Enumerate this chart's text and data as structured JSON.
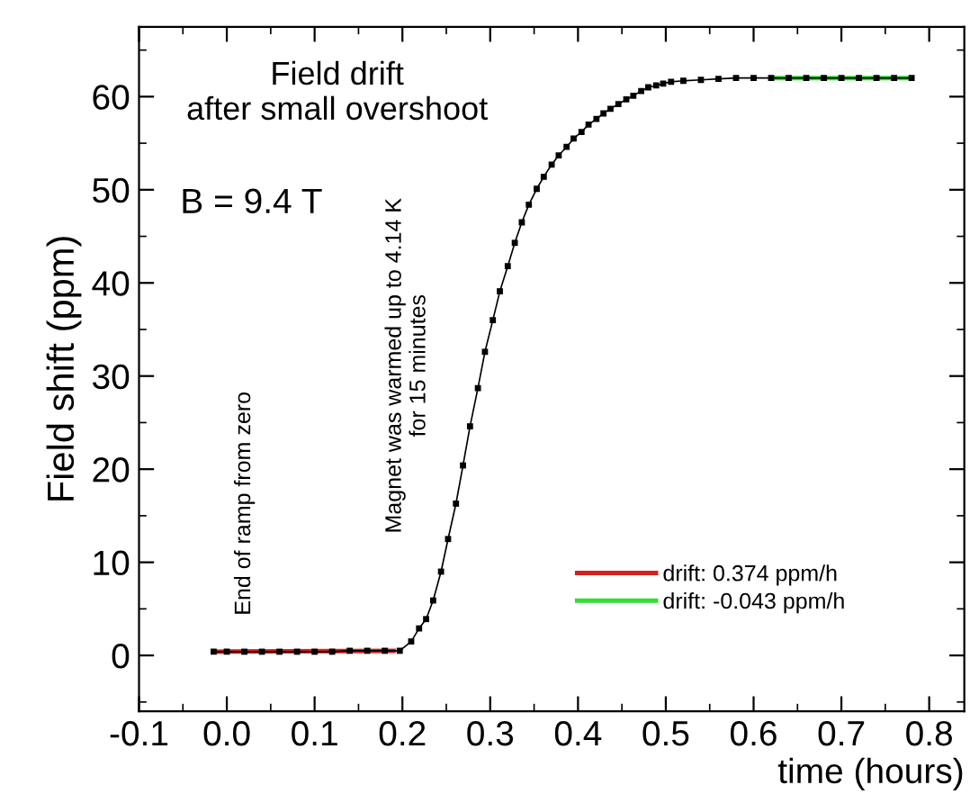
{
  "chart_data": {
    "type": "line",
    "xlabel": "time (hours)",
    "ylabel": "Field shift (ppm)",
    "xlim": [
      -0.1,
      0.84
    ],
    "xticks": [
      {
        "value": -0.1,
        "label": "-0.1"
      },
      {
        "value": 0,
        "label": "0.0"
      },
      {
        "value": 0.1,
        "label": "0.1"
      },
      {
        "value": 0.2,
        "label": "0.2"
      },
      {
        "value": 0.3,
        "label": "0.3"
      },
      {
        "value": 0.4,
        "label": "0.4"
      },
      {
        "value": 0.5,
        "label": "0.5"
      },
      {
        "value": 0.6,
        "label": "0.6"
      },
      {
        "value": 0.7,
        "label": "0.7"
      },
      {
        "value": 0.8,
        "label": "0.8"
      }
    ],
    "ylim": [
      -6,
      67.5
    ],
    "yticks": [
      0,
      10,
      20,
      30,
      40,
      50,
      60
    ],
    "grid": false,
    "legend": "bottom right",
    "annotations": [
      "Field drift\nafter small overshoot",
      "B = 9.4 T",
      "End of ramp from zero",
      "Magnet was warmed up to 4.14 K\nfor 15 minutes"
    ],
    "series": [
      {
        "color": "#000000",
        "marker": "square",
        "line_style": "solid",
        "x": [
          -0.015,
          0.0,
          0.02,
          0.04,
          0.06,
          0.08,
          0.1,
          0.12,
          0.14,
          0.16,
          0.18,
          0.197,
          0.21,
          0.219,
          0.227,
          0.235,
          0.244,
          0.252,
          0.261,
          0.269,
          0.277,
          0.286,
          0.294,
          0.303,
          0.311,
          0.32,
          0.328,
          0.336,
          0.344,
          0.353,
          0.361,
          0.37,
          0.378,
          0.387,
          0.395,
          0.404,
          0.412,
          0.421,
          0.429,
          0.437,
          0.446,
          0.455,
          0.463,
          0.472,
          0.48,
          0.489,
          0.497,
          0.506,
          0.52,
          0.54,
          0.56,
          0.58,
          0.6,
          0.62,
          0.64,
          0.66,
          0.68,
          0.7,
          0.72,
          0.74,
          0.76,
          0.78
        ],
        "values": [
          0.4,
          0.4,
          0.4,
          0.4,
          0.4,
          0.4,
          0.4,
          0.4,
          0.5,
          0.5,
          0.5,
          0.5,
          1.5,
          2.9,
          3.9,
          5.9,
          9.0,
          12.5,
          16.3,
          20.4,
          24.6,
          28.7,
          32.6,
          36.0,
          39.1,
          41.8,
          44.3,
          46.5,
          48.4,
          50.1,
          51.4,
          52.7,
          53.7,
          54.6,
          55.5,
          56.2,
          57.0,
          57.6,
          58.2,
          58.7,
          59.2,
          59.7,
          60.1,
          60.6,
          61.0,
          61.2,
          61.4,
          61.6,
          61.7,
          61.8,
          61.9,
          62.0,
          62.0,
          62.0,
          62.0,
          62.0,
          62.0,
          62.0,
          62.0,
          62.0,
          62.0,
          62.0
        ]
      },
      {
        "name": "drift: 0.374 ppm/h",
        "color": "#d42020",
        "marker": "none",
        "line_style": "solid",
        "x": [
          -0.015,
          0.19
        ],
        "values": [
          0.4,
          0.5
        ]
      },
      {
        "name": "drift: -0.043 ppm/h",
        "color": "#33dd33",
        "marker": "none",
        "line_style": "solid",
        "x": [
          0.62,
          0.78
        ],
        "values": [
          62.0,
          62.0
        ]
      }
    ]
  }
}
